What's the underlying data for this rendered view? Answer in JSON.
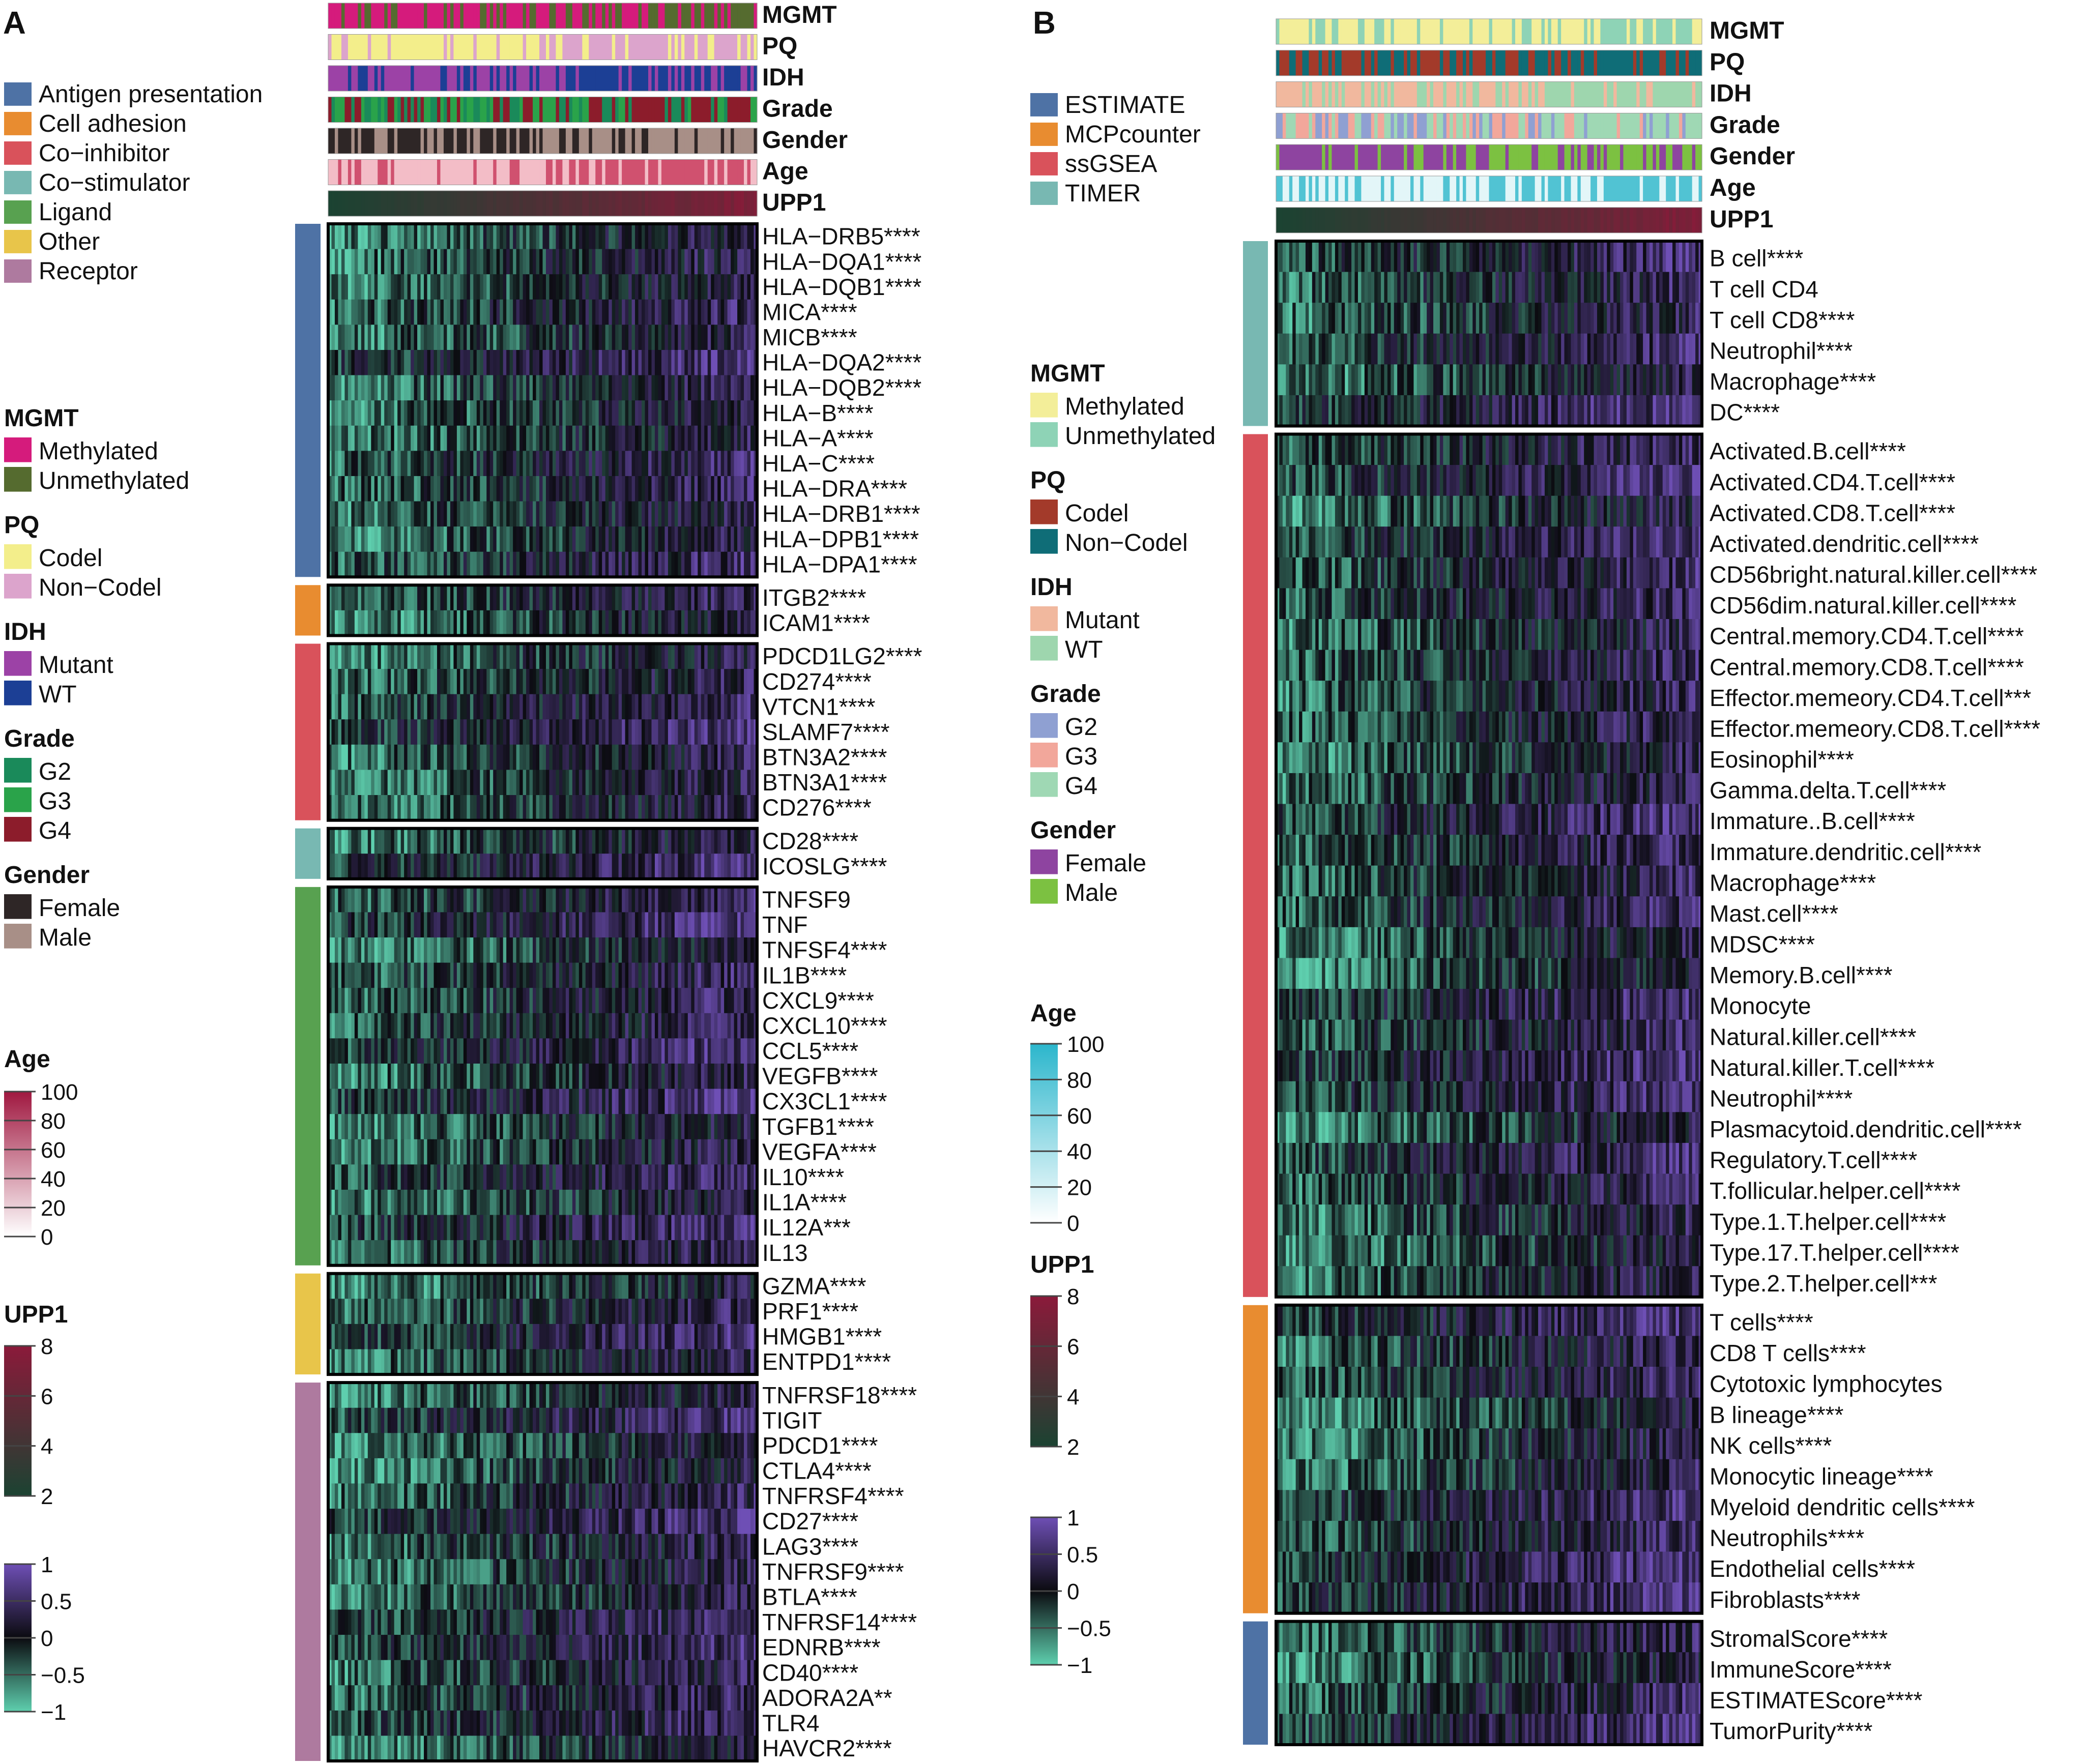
{
  "figure": {
    "panel_a_label": "A",
    "panel_b_label": "B"
  },
  "colors": {
    "hm_low": "#5ecfae",
    "hm_mid": "#0b0b10",
    "hm_high": "#6e4fb5"
  },
  "chart_data": [
    {
      "type": "heatmap",
      "panel": "A",
      "annotation_tracks": [
        {
          "name": "MGMT",
          "colors": [
            "#d51b7c",
            "#556b2f"
          ],
          "split": 0.72
        },
        {
          "name": "PQ",
          "colors": [
            "#f3ee8b",
            "#dca4cc"
          ],
          "split": 0.5
        },
        {
          "name": "IDH",
          "colors": [
            "#9c42a6",
            "#1c3f95"
          ],
          "split": 0.58
        },
        {
          "name": "Grade",
          "colors": [
            "#1a8a5a",
            "#2aa34a",
            "#8c1c2b"
          ],
          "split": 0.55
        },
        {
          "name": "Gender",
          "colors": [
            "#2e2626",
            "#a88f87"
          ],
          "split": 0.5
        },
        {
          "name": "Age",
          "colors": [
            "#f3bdc7",
            "#d0516f"
          ],
          "split": 0.5
        },
        {
          "name": "UPP1",
          "colors": [
            "#1b4332",
            "#8b1a3a"
          ],
          "split": 0.5,
          "gradient": true
        }
      ],
      "groups": [
        {
          "category": "Antigen presentation",
          "color": "#4e72a5",
          "rows": [
            "HLA−DRB5****",
            "HLA−DQA1****",
            "HLA−DQB1****",
            "MICA****",
            "MICB****",
            "HLA−DQA2****",
            "HLA−DQB2****",
            "HLA−B****",
            "HLA−A****",
            "HLA−C****",
            "HLA−DRA****",
            "HLA−DRB1****",
            "HLA−DPB1****",
            "HLA−DPA1****"
          ]
        },
        {
          "category": "Cell adhesion",
          "color": "#e88c30",
          "rows": [
            "ITGB2****",
            "ICAM1****"
          ]
        },
        {
          "category": "Co−inhibitor",
          "color": "#d9525b",
          "rows": [
            "PDCD1LG2****",
            "CD274****",
            "VTCN1****",
            "SLAMF7****",
            "BTN3A2****",
            "BTN3A1****",
            "CD276****"
          ]
        },
        {
          "category": "Co−stimulator",
          "color": "#78b8b2",
          "rows": [
            "CD28****",
            "ICOSLG****"
          ]
        },
        {
          "category": "Ligand",
          "color": "#58a150",
          "rows": [
            "TNFSF9",
            "TNF",
            "TNFSF4****",
            "IL1B****",
            "CXCL9****",
            "CXCL10****",
            "CCL5****",
            "VEGFB****",
            "CX3CL1****",
            "TGFB1****",
            "VEGFA****",
            "IL10****",
            "IL1A****",
            "IL12A***",
            "IL13"
          ]
        },
        {
          "category": "Other",
          "color": "#e8c54a",
          "rows": [
            "GZMA****",
            "PRF1****",
            "HMGB1****",
            "ENTPD1****"
          ]
        },
        {
          "category": "Receptor",
          "color": "#ae7a9f",
          "rows": [
            "TNFRSF18****",
            "TIGIT",
            "PDCD1****",
            "CTLA4****",
            "TNFRSF4****",
            "CD27****",
            "LAG3****",
            "TNFRSF9****",
            "BTLA****",
            "TNFRSF14****",
            "EDNRB****",
            "CD40****",
            "ADORA2A**",
            "TLR4",
            "HAVCR2****"
          ]
        }
      ],
      "scale": {
        "range": [
          -1,
          1
        ],
        "ticks": [
          "1",
          "0.5",
          "0",
          "−0.5",
          "−1"
        ]
      }
    },
    {
      "type": "heatmap",
      "panel": "B",
      "annotation_tracks": [
        {
          "name": "MGMT",
          "colors": [
            "#f3ee99",
            "#8ed3b6"
          ],
          "split": 0.72
        },
        {
          "name": "PQ",
          "colors": [
            "#a33a2a",
            "#0f6d77"
          ],
          "split": 0.5
        },
        {
          "name": "IDH",
          "colors": [
            "#f1b89e",
            "#9ed6ae"
          ],
          "split": 0.58
        },
        {
          "name": "Grade",
          "colors": [
            "#8fa0d2",
            "#f2a79b",
            "#9fd8b4"
          ],
          "split": 0.5
        },
        {
          "name": "Gender",
          "colors": [
            "#8e44a0",
            "#7cc141"
          ],
          "split": 0.5
        },
        {
          "name": "Age",
          "colors": [
            "#e3f6f8",
            "#51c3d3"
          ],
          "split": 0.5
        },
        {
          "name": "UPP1",
          "colors": [
            "#1b4332",
            "#8b1a3a"
          ],
          "split": 0.5,
          "gradient": true
        }
      ],
      "groups": [
        {
          "category": "TIMER",
          "color": "#78b8b2",
          "rows": [
            "B cell****",
            "T cell CD4",
            "T cell CD8****",
            "Neutrophil****",
            "Macrophage****",
            "DC****"
          ]
        },
        {
          "category": "ssGSEA",
          "color": "#d9525b",
          "rows": [
            "Activated.B.cell****",
            "Activated.CD4.T.cell****",
            "Activated.CD8.T.cell****",
            "Activated.dendritic.cell****",
            "CD56bright.natural.killer.cell****",
            "CD56dim.natural.killer.cell****",
            "Central.memory.CD4.T.cell****",
            "Central.memory.CD8.T.cell****",
            "Effector.memeory.CD4.T.cell***",
            "Effector.memeory.CD8.T.cell****",
            "Eosinophil****",
            "Gamma.delta.T.cell****",
            "Immature..B.cell****",
            "Immature.dendritic.cell****",
            "Macrophage****",
            "Mast.cell****",
            "MDSC****",
            "Memory.B.cell****",
            "Monocyte",
            "Natural.killer.cell****",
            "Natural.killer.T.cell****",
            "Neutrophil****",
            "Plasmacytoid.dendritic.cell****",
            "Regulatory.T.cell****",
            "T.follicular.helper.cell****",
            "Type.1.T.helper.cell****",
            "Type.17.T.helper.cell****",
            "Type.2.T.helper.cell***"
          ]
        },
        {
          "category": "MCPcounter",
          "color": "#e88c30",
          "rows": [
            "T cells****",
            "CD8 T cells****",
            "Cytotoxic lymphocytes",
            "B lineage****",
            "NK cells****",
            "Monocytic lineage****",
            "Myeloid dendritic cells****",
            "Neutrophils****",
            "Endothelial cells****",
            "Fibroblasts****"
          ]
        },
        {
          "category": "ESTIMATE",
          "color": "#4e72a5",
          "rows": [
            "StromalScore****",
            "ImmuneScore****",
            "ESTIMATEScore****",
            "TumorPurity****"
          ]
        }
      ],
      "scale": {
        "range": [
          -1,
          1
        ],
        "ticks": [
          "1",
          "0.5",
          "0",
          "−0.5",
          "−1"
        ]
      }
    }
  ],
  "legend_a": {
    "categories": [
      {
        "label": "Antigen presentation",
        "color": "#4e72a5"
      },
      {
        "label": "Cell adhesion",
        "color": "#e88c30"
      },
      {
        "label": "Co−inhibitor",
        "color": "#d9525b"
      },
      {
        "label": "Co−stimulator",
        "color": "#78b8b2"
      },
      {
        "label": "Ligand",
        "color": "#58a150"
      },
      {
        "label": "Other",
        "color": "#e8c54a"
      },
      {
        "label": "Receptor",
        "color": "#ae7a9f"
      }
    ],
    "annotations": [
      {
        "title": "MGMT",
        "items": [
          {
            "label": "Methylated",
            "color": "#d51b7c"
          },
          {
            "label": "Unmethylated",
            "color": "#556b2f"
          }
        ]
      },
      {
        "title": "PQ",
        "items": [
          {
            "label": "Codel",
            "color": "#f3ee8b"
          },
          {
            "label": "Non−Codel",
            "color": "#dca4cc"
          }
        ]
      },
      {
        "title": "IDH",
        "items": [
          {
            "label": "Mutant",
            "color": "#9c42a6"
          },
          {
            "label": "WT",
            "color": "#1c3f95"
          }
        ]
      },
      {
        "title": "Grade",
        "items": [
          {
            "label": "G2",
            "color": "#1a8a5a"
          },
          {
            "label": "G3",
            "color": "#2aa34a"
          },
          {
            "label": "G4",
            "color": "#8c1c2b"
          }
        ]
      },
      {
        "title": "Gender",
        "items": [
          {
            "label": "Female",
            "color": "#2e2626"
          },
          {
            "label": "Male",
            "color": "#a88f87"
          }
        ]
      }
    ],
    "age": {
      "title": "Age",
      "ticks": [
        "100",
        "80",
        "60",
        "40",
        "20",
        "0"
      ],
      "colors": [
        "#a01840",
        "#ffffff"
      ]
    },
    "upp1": {
      "title": "UPP1",
      "ticks": [
        "8",
        "6",
        "4",
        "2"
      ],
      "colors": [
        "#8b1a3a",
        "#1b4332"
      ]
    }
  },
  "legend_b": {
    "categories": [
      {
        "label": "ESTIMATE",
        "color": "#4e72a5"
      },
      {
        "label": "MCPcounter",
        "color": "#e88c30"
      },
      {
        "label": "ssGSEA",
        "color": "#d9525b"
      },
      {
        "label": "TIMER",
        "color": "#78b8b2"
      }
    ],
    "annotations": [
      {
        "title": "MGMT",
        "items": [
          {
            "label": "Methylated",
            "color": "#f3ee99"
          },
          {
            "label": "Unmethylated",
            "color": "#8ed3b6"
          }
        ]
      },
      {
        "title": "PQ",
        "items": [
          {
            "label": "Codel",
            "color": "#a33a2a"
          },
          {
            "label": "Non−Codel",
            "color": "#0f6d77"
          }
        ]
      },
      {
        "title": "IDH",
        "items": [
          {
            "label": "Mutant",
            "color": "#f1b89e"
          },
          {
            "label": "WT",
            "color": "#9ed6ae"
          }
        ]
      },
      {
        "title": "Grade",
        "items": [
          {
            "label": "G2",
            "color": "#8fa0d2"
          },
          {
            "label": "G3",
            "color": "#f2a79b"
          },
          {
            "label": "G4",
            "color": "#9fd8b4"
          }
        ]
      },
      {
        "title": "Gender",
        "items": [
          {
            "label": "Female",
            "color": "#8e44a0"
          },
          {
            "label": "Male",
            "color": "#7cc141"
          }
        ]
      }
    ],
    "age": {
      "title": "Age",
      "ticks": [
        "100",
        "80",
        "60",
        "40",
        "20",
        "0"
      ],
      "colors": [
        "#2bb6cc",
        "#ffffff"
      ]
    },
    "upp1": {
      "title": "UPP1",
      "ticks": [
        "8",
        "6",
        "4",
        "2"
      ],
      "colors": [
        "#8b1a3a",
        "#1b4332"
      ]
    }
  }
}
